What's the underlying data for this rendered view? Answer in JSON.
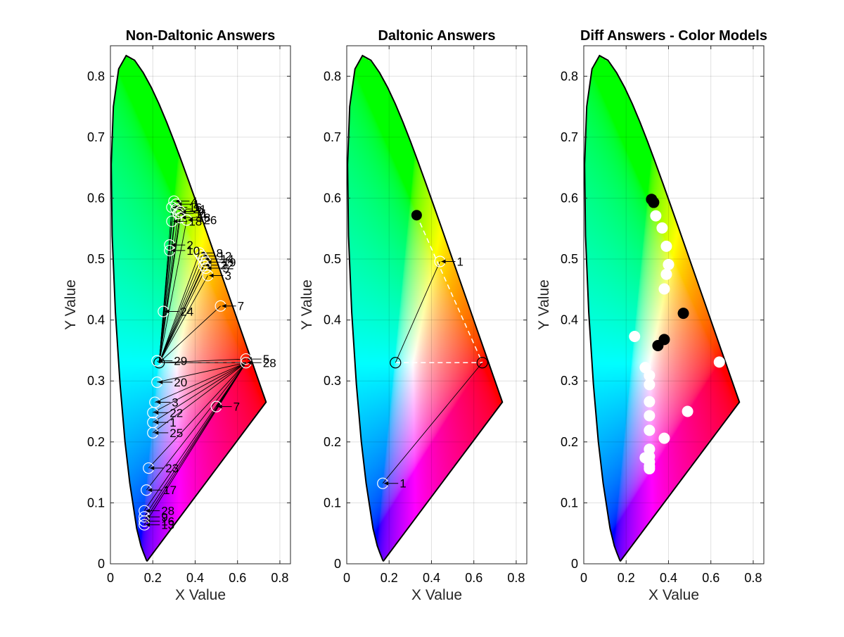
{
  "chart_data": [
    {
      "type": "scatter",
      "title": "Non-Daltonic Answers",
      "xlabel": "X Value",
      "ylabel": "Y Value",
      "xlim": [
        0,
        0.85
      ],
      "ylim": [
        0,
        0.85
      ],
      "xticks": [
        "0",
        "0.2",
        "0.4",
        "0.6",
        "0.8"
      ],
      "yticks": [
        "0",
        "0.1",
        "0.2",
        "0.3",
        "0.4",
        "0.5",
        "0.6",
        "0.7",
        "0.8"
      ],
      "grid": true,
      "background": "CIE 1931 chromaticity diagram",
      "reference_points": [
        {
          "x": 0.23,
          "y": 0.33
        },
        {
          "x": 0.64,
          "y": 0.33
        }
      ],
      "points": [
        {
          "x": 0.3,
          "y": 0.595,
          "label": "4"
        },
        {
          "x": 0.31,
          "y": 0.59,
          "label": "1"
        },
        {
          "x": 0.29,
          "y": 0.585,
          "label": "16"
        },
        {
          "x": 0.31,
          "y": 0.582,
          "label": "21"
        },
        {
          "x": 0.33,
          "y": 0.578,
          "label": "9"
        },
        {
          "x": 0.32,
          "y": 0.575,
          "label": "11"
        },
        {
          "x": 0.33,
          "y": 0.568,
          "label": "18"
        },
        {
          "x": 0.36,
          "y": 0.564,
          "label": "26"
        },
        {
          "x": 0.29,
          "y": 0.562,
          "label": "18"
        },
        {
          "x": 0.28,
          "y": 0.523,
          "label": "2"
        },
        {
          "x": 0.28,
          "y": 0.514,
          "label": "10"
        },
        {
          "x": 0.42,
          "y": 0.51,
          "label": "8"
        },
        {
          "x": 0.43,
          "y": 0.505,
          "label": "12"
        },
        {
          "x": 0.44,
          "y": 0.5,
          "label": "14"
        },
        {
          "x": 0.45,
          "y": 0.495,
          "label": "19"
        },
        {
          "x": 0.44,
          "y": 0.49,
          "label": "22"
        },
        {
          "x": 0.45,
          "y": 0.485,
          "label": "5"
        },
        {
          "x": 0.46,
          "y": 0.473,
          "label": "3"
        },
        {
          "x": 0.52,
          "y": 0.423,
          "label": "7"
        },
        {
          "x": 0.25,
          "y": 0.414,
          "label": "24"
        },
        {
          "x": 0.64,
          "y": 0.336,
          "label": "5"
        },
        {
          "x": 0.64,
          "y": 0.33,
          "label": "28"
        },
        {
          "x": 0.22,
          "y": 0.333,
          "label": "29"
        },
        {
          "x": 0.22,
          "y": 0.298,
          "label": "20"
        },
        {
          "x": 0.21,
          "y": 0.265,
          "label": "3"
        },
        {
          "x": 0.5,
          "y": 0.258,
          "label": "7"
        },
        {
          "x": 0.2,
          "y": 0.248,
          "label": "22"
        },
        {
          "x": 0.2,
          "y": 0.232,
          "label": "1"
        },
        {
          "x": 0.2,
          "y": 0.215,
          "label": "25"
        },
        {
          "x": 0.18,
          "y": 0.157,
          "label": "23"
        },
        {
          "x": 0.17,
          "y": 0.121,
          "label": "17"
        },
        {
          "x": 0.16,
          "y": 0.087,
          "label": "28"
        },
        {
          "x": 0.16,
          "y": 0.077,
          "label": "9"
        },
        {
          "x": 0.16,
          "y": 0.07,
          "label": "16"
        },
        {
          "x": 0.16,
          "y": 0.064,
          "label": "13"
        }
      ]
    },
    {
      "type": "scatter",
      "title": "Daltonic Answers",
      "xlabel": "X Value",
      "ylabel": "Y Value",
      "xlim": [
        0,
        0.85
      ],
      "ylim": [
        0,
        0.85
      ],
      "xticks": [
        "0",
        "0.2",
        "0.4",
        "0.6",
        "0.8"
      ],
      "yticks": [
        "0",
        "0.1",
        "0.2",
        "0.3",
        "0.4",
        "0.5",
        "0.6",
        "0.7",
        "0.8"
      ],
      "grid": true,
      "background": "CIE 1931 chromaticity diagram",
      "reference_points": [
        {
          "x": 0.23,
          "y": 0.33
        },
        {
          "x": 0.64,
          "y": 0.33
        }
      ],
      "filled_points": [
        {
          "x": 0.33,
          "y": 0.572
        }
      ],
      "points": [
        {
          "x": 0.44,
          "y": 0.496,
          "label": "1"
        },
        {
          "x": 0.17,
          "y": 0.132,
          "label": "1"
        }
      ]
    },
    {
      "type": "scatter",
      "title": "Diff Answers - Color Models",
      "xlabel": "X Value",
      "ylabel": "Y Value",
      "xlim": [
        0,
        0.85
      ],
      "ylim": [
        0,
        0.85
      ],
      "xticks": [
        "0",
        "0.2",
        "0.4",
        "0.6",
        "0.8"
      ],
      "yticks": [
        "0",
        "0.1",
        "0.2",
        "0.3",
        "0.4",
        "0.5",
        "0.6",
        "0.7",
        "0.8"
      ],
      "grid": true,
      "background": "CIE 1931 chromaticity diagram",
      "black_points": [
        {
          "x": 0.32,
          "y": 0.598
        },
        {
          "x": 0.33,
          "y": 0.593
        },
        {
          "x": 0.47,
          "y": 0.411
        },
        {
          "x": 0.38,
          "y": 0.368
        },
        {
          "x": 0.35,
          "y": 0.358
        }
      ],
      "white_points": [
        {
          "x": 0.34,
          "y": 0.571
        },
        {
          "x": 0.37,
          "y": 0.551
        },
        {
          "x": 0.39,
          "y": 0.521
        },
        {
          "x": 0.4,
          "y": 0.491
        },
        {
          "x": 0.39,
          "y": 0.475
        },
        {
          "x": 0.38,
          "y": 0.451
        },
        {
          "x": 0.24,
          "y": 0.373
        },
        {
          "x": 0.29,
          "y": 0.322
        },
        {
          "x": 0.31,
          "y": 0.309
        },
        {
          "x": 0.31,
          "y": 0.294
        },
        {
          "x": 0.31,
          "y": 0.266
        },
        {
          "x": 0.31,
          "y": 0.243
        },
        {
          "x": 0.31,
          "y": 0.219
        },
        {
          "x": 0.38,
          "y": 0.206
        },
        {
          "x": 0.31,
          "y": 0.188
        },
        {
          "x": 0.31,
          "y": 0.176
        },
        {
          "x": 0.29,
          "y": 0.174
        },
        {
          "x": 0.31,
          "y": 0.167
        },
        {
          "x": 0.31,
          "y": 0.16
        },
        {
          "x": 0.31,
          "y": 0.156
        },
        {
          "x": 0.49,
          "y": 0.25
        },
        {
          "x": 0.64,
          "y": 0.331
        }
      ]
    }
  ]
}
